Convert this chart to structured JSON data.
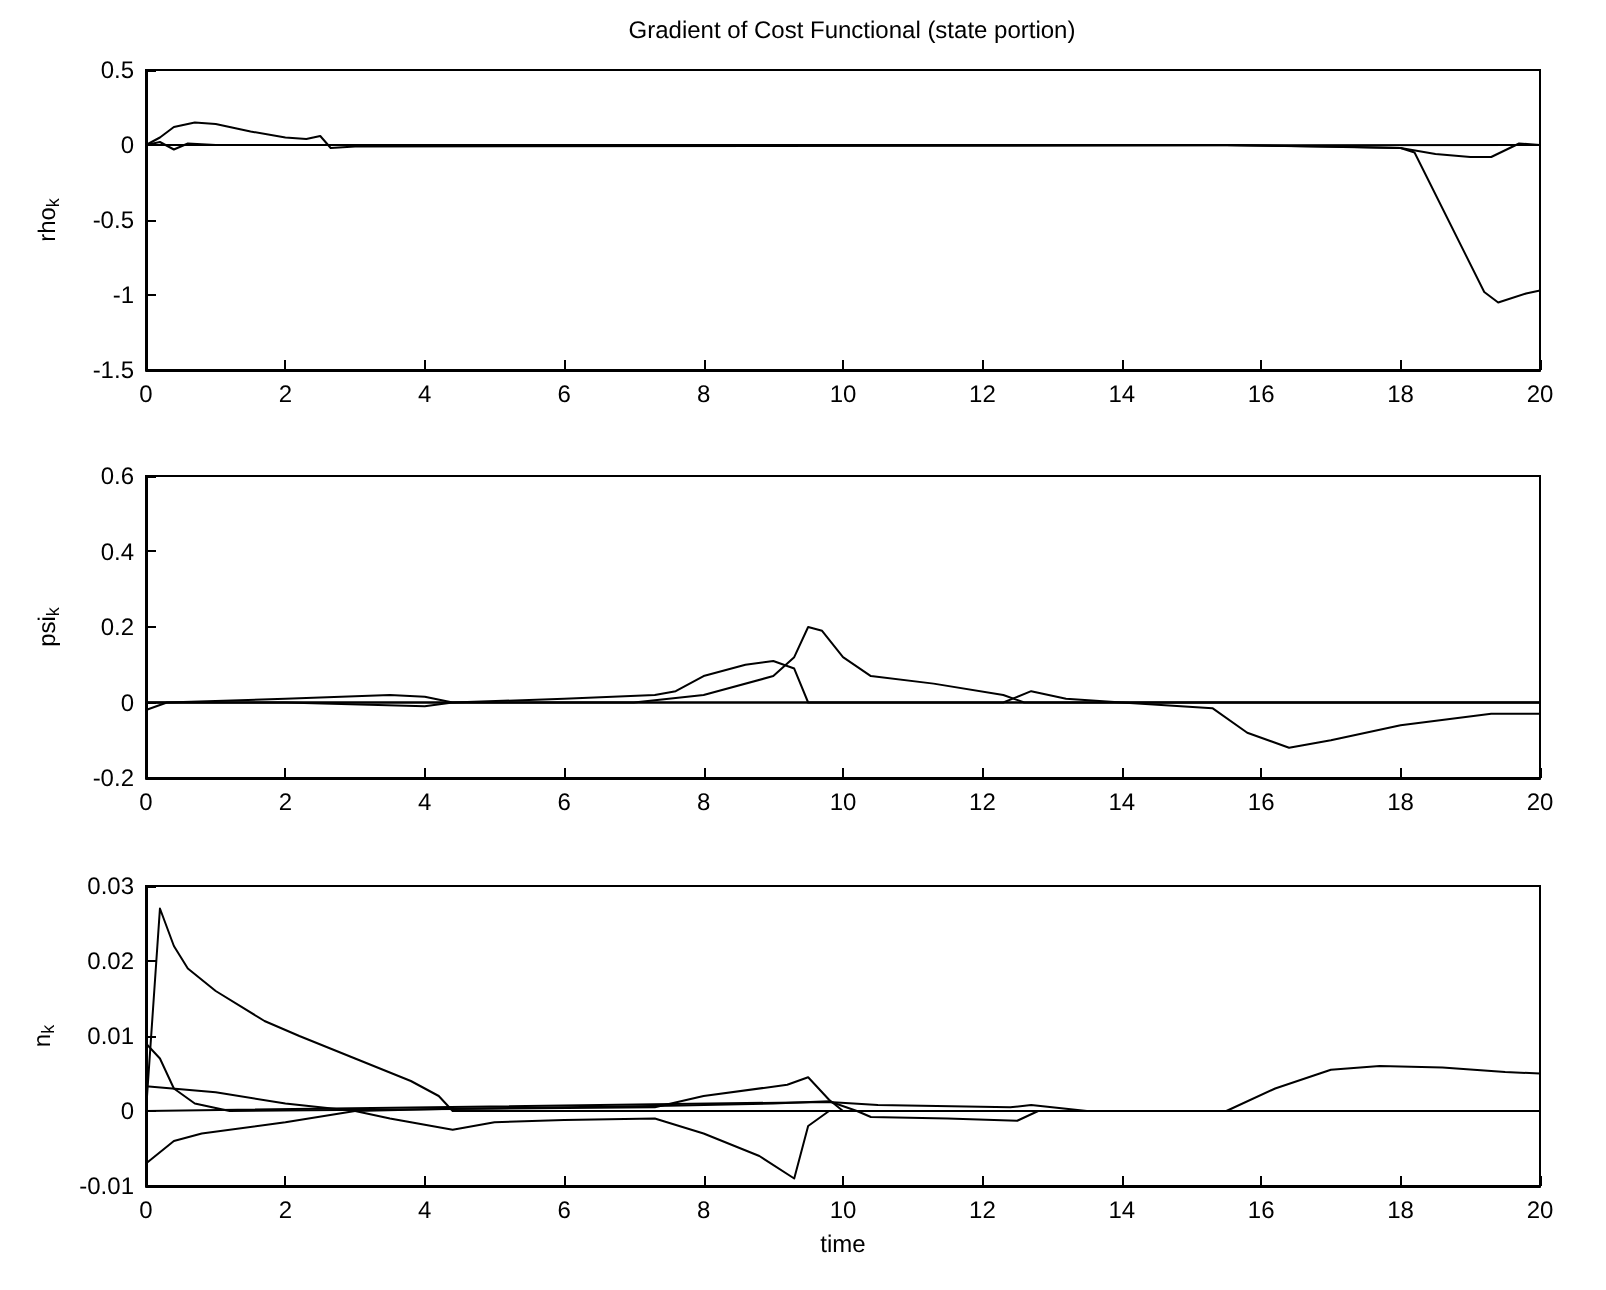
{
  "chart_data": [
    {
      "type": "line",
      "title": "Gradient of Cost Functional (state portion)",
      "ylabel": "rho$_{k}$",
      "xlim": [
        0,
        20
      ],
      "xticks": [
        0,
        2,
        4,
        6,
        8,
        10,
        12,
        14,
        16,
        18,
        20
      ],
      "ylim": [
        -1.5,
        0.5
      ],
      "yticks": [
        -1.5,
        -1,
        -0.5,
        0,
        0.5
      ],
      "grid": false,
      "series": [
        {
          "color": "#000000",
          "x": [
            0,
            0.2,
            0.4,
            0.7,
            1,
            1.5,
            2,
            2.3,
            2.5,
            2.65,
            3,
            20
          ],
          "values": [
            0,
            0.05,
            0.12,
            0.15,
            0.14,
            0.09,
            0.05,
            0.04,
            0.06,
            -0.02,
            -0.01,
            0
          ]
        },
        {
          "color": "#000000",
          "x": [
            0,
            0.2,
            0.4,
            0.6,
            1,
            15.5,
            17,
            18,
            18.2,
            19.2,
            19.4,
            19.8,
            20
          ],
          "values": [
            0,
            0.02,
            -0.03,
            0.01,
            0,
            0,
            -0.01,
            -0.02,
            -0.05,
            -0.98,
            -1.05,
            -0.99,
            -0.97
          ]
        },
        {
          "color": "#000000",
          "x": [
            0,
            15.5,
            18,
            18.5,
            19,
            19.3,
            19.7,
            20
          ],
          "values": [
            0,
            0,
            -0.02,
            -0.06,
            -0.08,
            -0.08,
            0.01,
            0
          ]
        }
      ]
    },
    {
      "type": "line",
      "ylabel": "psi$_{k}$",
      "xlim": [
        0,
        20
      ],
      "xticks": [
        0,
        2,
        4,
        6,
        8,
        10,
        12,
        14,
        16,
        18,
        20
      ],
      "ylim": [
        -0.2,
        0.6
      ],
      "yticks": [
        -0.2,
        0,
        0.2,
        0.4,
        0.6
      ],
      "grid": false,
      "series": [
        {
          "color": "#000000",
          "x": [
            0,
            0.3,
            2,
            3.5,
            4,
            4.4,
            6,
            7.3,
            7.6,
            8,
            8.6,
            9,
            9.3,
            9.5,
            20
          ],
          "values": [
            -0.02,
            0,
            0.01,
            0.02,
            0.015,
            0,
            0.01,
            0.02,
            0.03,
            0.07,
            0.1,
            0.11,
            0.09,
            0,
            0
          ]
        },
        {
          "color": "#000000",
          "x": [
            0,
            2,
            4,
            4.4,
            7,
            8,
            9,
            9.3,
            9.5,
            9.7,
            10,
            10.4,
            11.3,
            12.3,
            12.6,
            20
          ],
          "values": [
            0,
            0,
            -0.01,
            0,
            0,
            0.02,
            0.07,
            0.12,
            0.2,
            0.19,
            0.12,
            0.07,
            0.05,
            0.02,
            0,
            0
          ]
        },
        {
          "color": "#000000",
          "x": [
            0,
            12.3,
            12.7,
            13.2,
            14,
            15.3,
            15.8,
            16.4,
            17,
            18,
            19.3,
            20
          ],
          "values": [
            0,
            0,
            0.03,
            0.01,
            0,
            -0.015,
            -0.08,
            -0.12,
            -0.1,
            -0.06,
            -0.03,
            -0.03
          ]
        },
        {
          "color": "#000000",
          "x": [
            0,
            20
          ],
          "values": [
            0,
            0
          ]
        }
      ]
    },
    {
      "type": "line",
      "ylabel": "n$_{k}$",
      "xlabel": "time",
      "xlim": [
        0,
        20
      ],
      "xticks": [
        0,
        2,
        4,
        6,
        8,
        10,
        12,
        14,
        16,
        18,
        20
      ],
      "ylim": [
        -0.01,
        0.03
      ],
      "yticks": [
        -0.01,
        0,
        0.01,
        0.02,
        0.03
      ],
      "grid": false,
      "series": [
        {
          "color": "#000000",
          "x": [
            0,
            0.2,
            0.4,
            0.6,
            1,
            1.7,
            2.2,
            3,
            3.8,
            4.2,
            4.4,
            20
          ],
          "values": [
            0,
            0.027,
            0.022,
            0.019,
            0.016,
            0.012,
            0.01,
            0.007,
            0.004,
            0.002,
            0,
            0
          ]
        },
        {
          "color": "#000000",
          "x": [
            0,
            0.2,
            0.4,
            0.7,
            1.2,
            7.3,
            8,
            9.2,
            9.5,
            9.8,
            10,
            15.5,
            16.2,
            17,
            17.7,
            18.6,
            19.5,
            20
          ],
          "values": [
            0.009,
            0.007,
            0.003,
            0.001,
            0,
            0.0005,
            0.002,
            0.0035,
            0.0045,
            0.0015,
            0,
            0,
            0.003,
            0.0055,
            0.006,
            0.0058,
            0.0052,
            0.005
          ]
        },
        {
          "color": "#000000",
          "x": [
            0,
            1,
            2,
            3,
            3.5,
            4.4,
            5,
            6,
            7.3,
            8,
            8.8,
            9.3,
            9.5,
            9.8,
            20
          ],
          "values": [
            0.0033,
            0.0025,
            0.001,
            0,
            -0.001,
            -0.0025,
            -0.0015,
            -0.0012,
            -0.001,
            -0.003,
            -0.006,
            -0.009,
            -0.002,
            0,
            0
          ]
        },
        {
          "color": "#000000",
          "x": [
            0,
            0.4,
            0.8,
            2,
            3,
            4.4,
            6,
            7.5,
            9,
            9.8,
            10.2,
            10.4,
            11.5,
            12.5,
            12.8,
            20
          ],
          "values": [
            -0.007,
            -0.004,
            -0.003,
            -0.0015,
            0,
            0.0003,
            0.0005,
            0.0007,
            0.001,
            0.0013,
            0,
            -0.0008,
            -0.001,
            -0.0013,
            0,
            0
          ]
        },
        {
          "color": "#000000",
          "x": [
            0,
            9.8,
            10.5,
            12.4,
            12.7,
            13.5,
            20
          ],
          "values": [
            0,
            0.0012,
            0.0008,
            0.0005,
            0.0008,
            0,
            0
          ]
        }
      ]
    }
  ]
}
